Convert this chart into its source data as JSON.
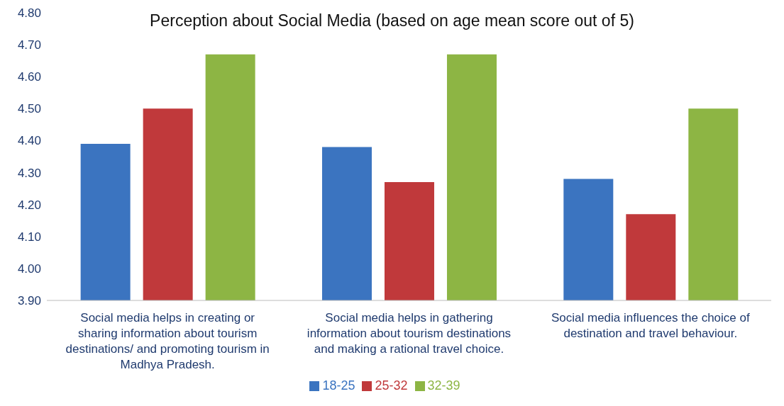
{
  "chart_data": {
    "type": "bar",
    "title": "Perception about Social Media (based on age mean score out of 5)",
    "categories": [
      "Social media helps in creating or sharing information about tourism destinations/ and promoting tourism in Madhya Pradesh.",
      "Social media helps in gathering information about tourism destinations and making a rational travel choice.",
      "Social media influences the choice of destination and travel behaviour."
    ],
    "series": [
      {
        "name": "18-25",
        "color": "#3b74c0",
        "values": [
          4.39,
          4.38,
          4.28
        ]
      },
      {
        "name": "25-32",
        "color": "#c0393b",
        "values": [
          4.5,
          4.27,
          4.17
        ]
      },
      {
        "name": "32-39",
        "color": "#8db544",
        "values": [
          4.67,
          4.67,
          4.5
        ]
      }
    ],
    "ylim": [
      3.9,
      4.8
    ],
    "yticks": [
      {
        "value": 3.9,
        "label": "3.90"
      },
      {
        "value": 4.0,
        "label": "4.00"
      },
      {
        "value": 4.1,
        "label": "4.10"
      },
      {
        "value": 4.2,
        "label": "4.20"
      },
      {
        "value": 4.3,
        "label": "4.30"
      },
      {
        "value": 4.4,
        "label": "4.40"
      },
      {
        "value": 4.5,
        "label": "4.50"
      },
      {
        "value": 4.6,
        "label": "4.60"
      },
      {
        "value": 4.7,
        "label": "4.70"
      },
      {
        "value": 4.8,
        "label": "4.80"
      }
    ],
    "grid": false,
    "legend": "bottom"
  }
}
